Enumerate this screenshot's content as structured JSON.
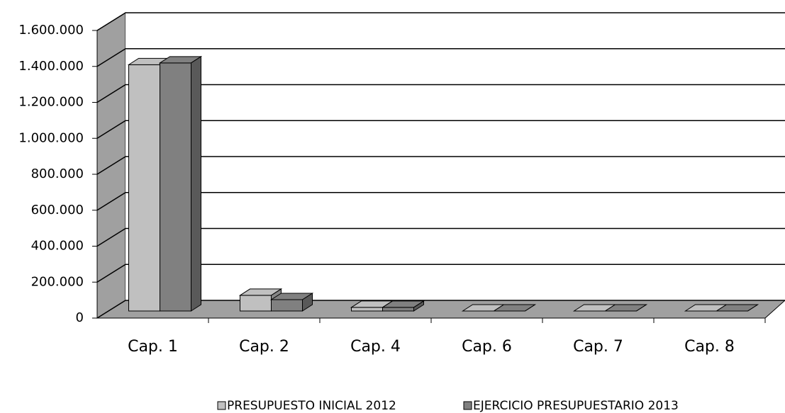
{
  "chart_data": {
    "type": "bar3d",
    "categories": [
      "Cap. 1",
      "Cap. 2",
      "Cap. 4",
      "Cap. 6",
      "Cap. 7",
      "Cap. 8"
    ],
    "series": [
      {
        "name": "PRESUPUESTO INICIAL 2012",
        "color": "#c0c0c0",
        "values": [
          1370000,
          87000,
          20000,
          0,
          0,
          0
        ]
      },
      {
        "name": "EJERCICIO PRESUPUESTARIO 2013",
        "color": "#808080",
        "values": [
          1380000,
          63000,
          20000,
          0,
          0,
          0
        ]
      }
    ],
    "ylim": [
      0,
      1600000
    ],
    "yticks": [
      0,
      {
        "value": 200000,
        "label": "200.000"
      },
      {
        "value": 400000,
        "label": "400.000"
      },
      {
        "value": 600000,
        "label": "600.000"
      },
      {
        "value": 800000,
        "label": "800.000"
      },
      {
        "value": 1000000,
        "label": "1.000.000"
      },
      {
        "value": 1200000,
        "label": "1.200.000"
      },
      {
        "value": 1400000,
        "label": "1.400.000"
      },
      {
        "value": 1600000,
        "label": "1.600.000"
      }
    ],
    "grid": true,
    "legend": "bottom"
  }
}
